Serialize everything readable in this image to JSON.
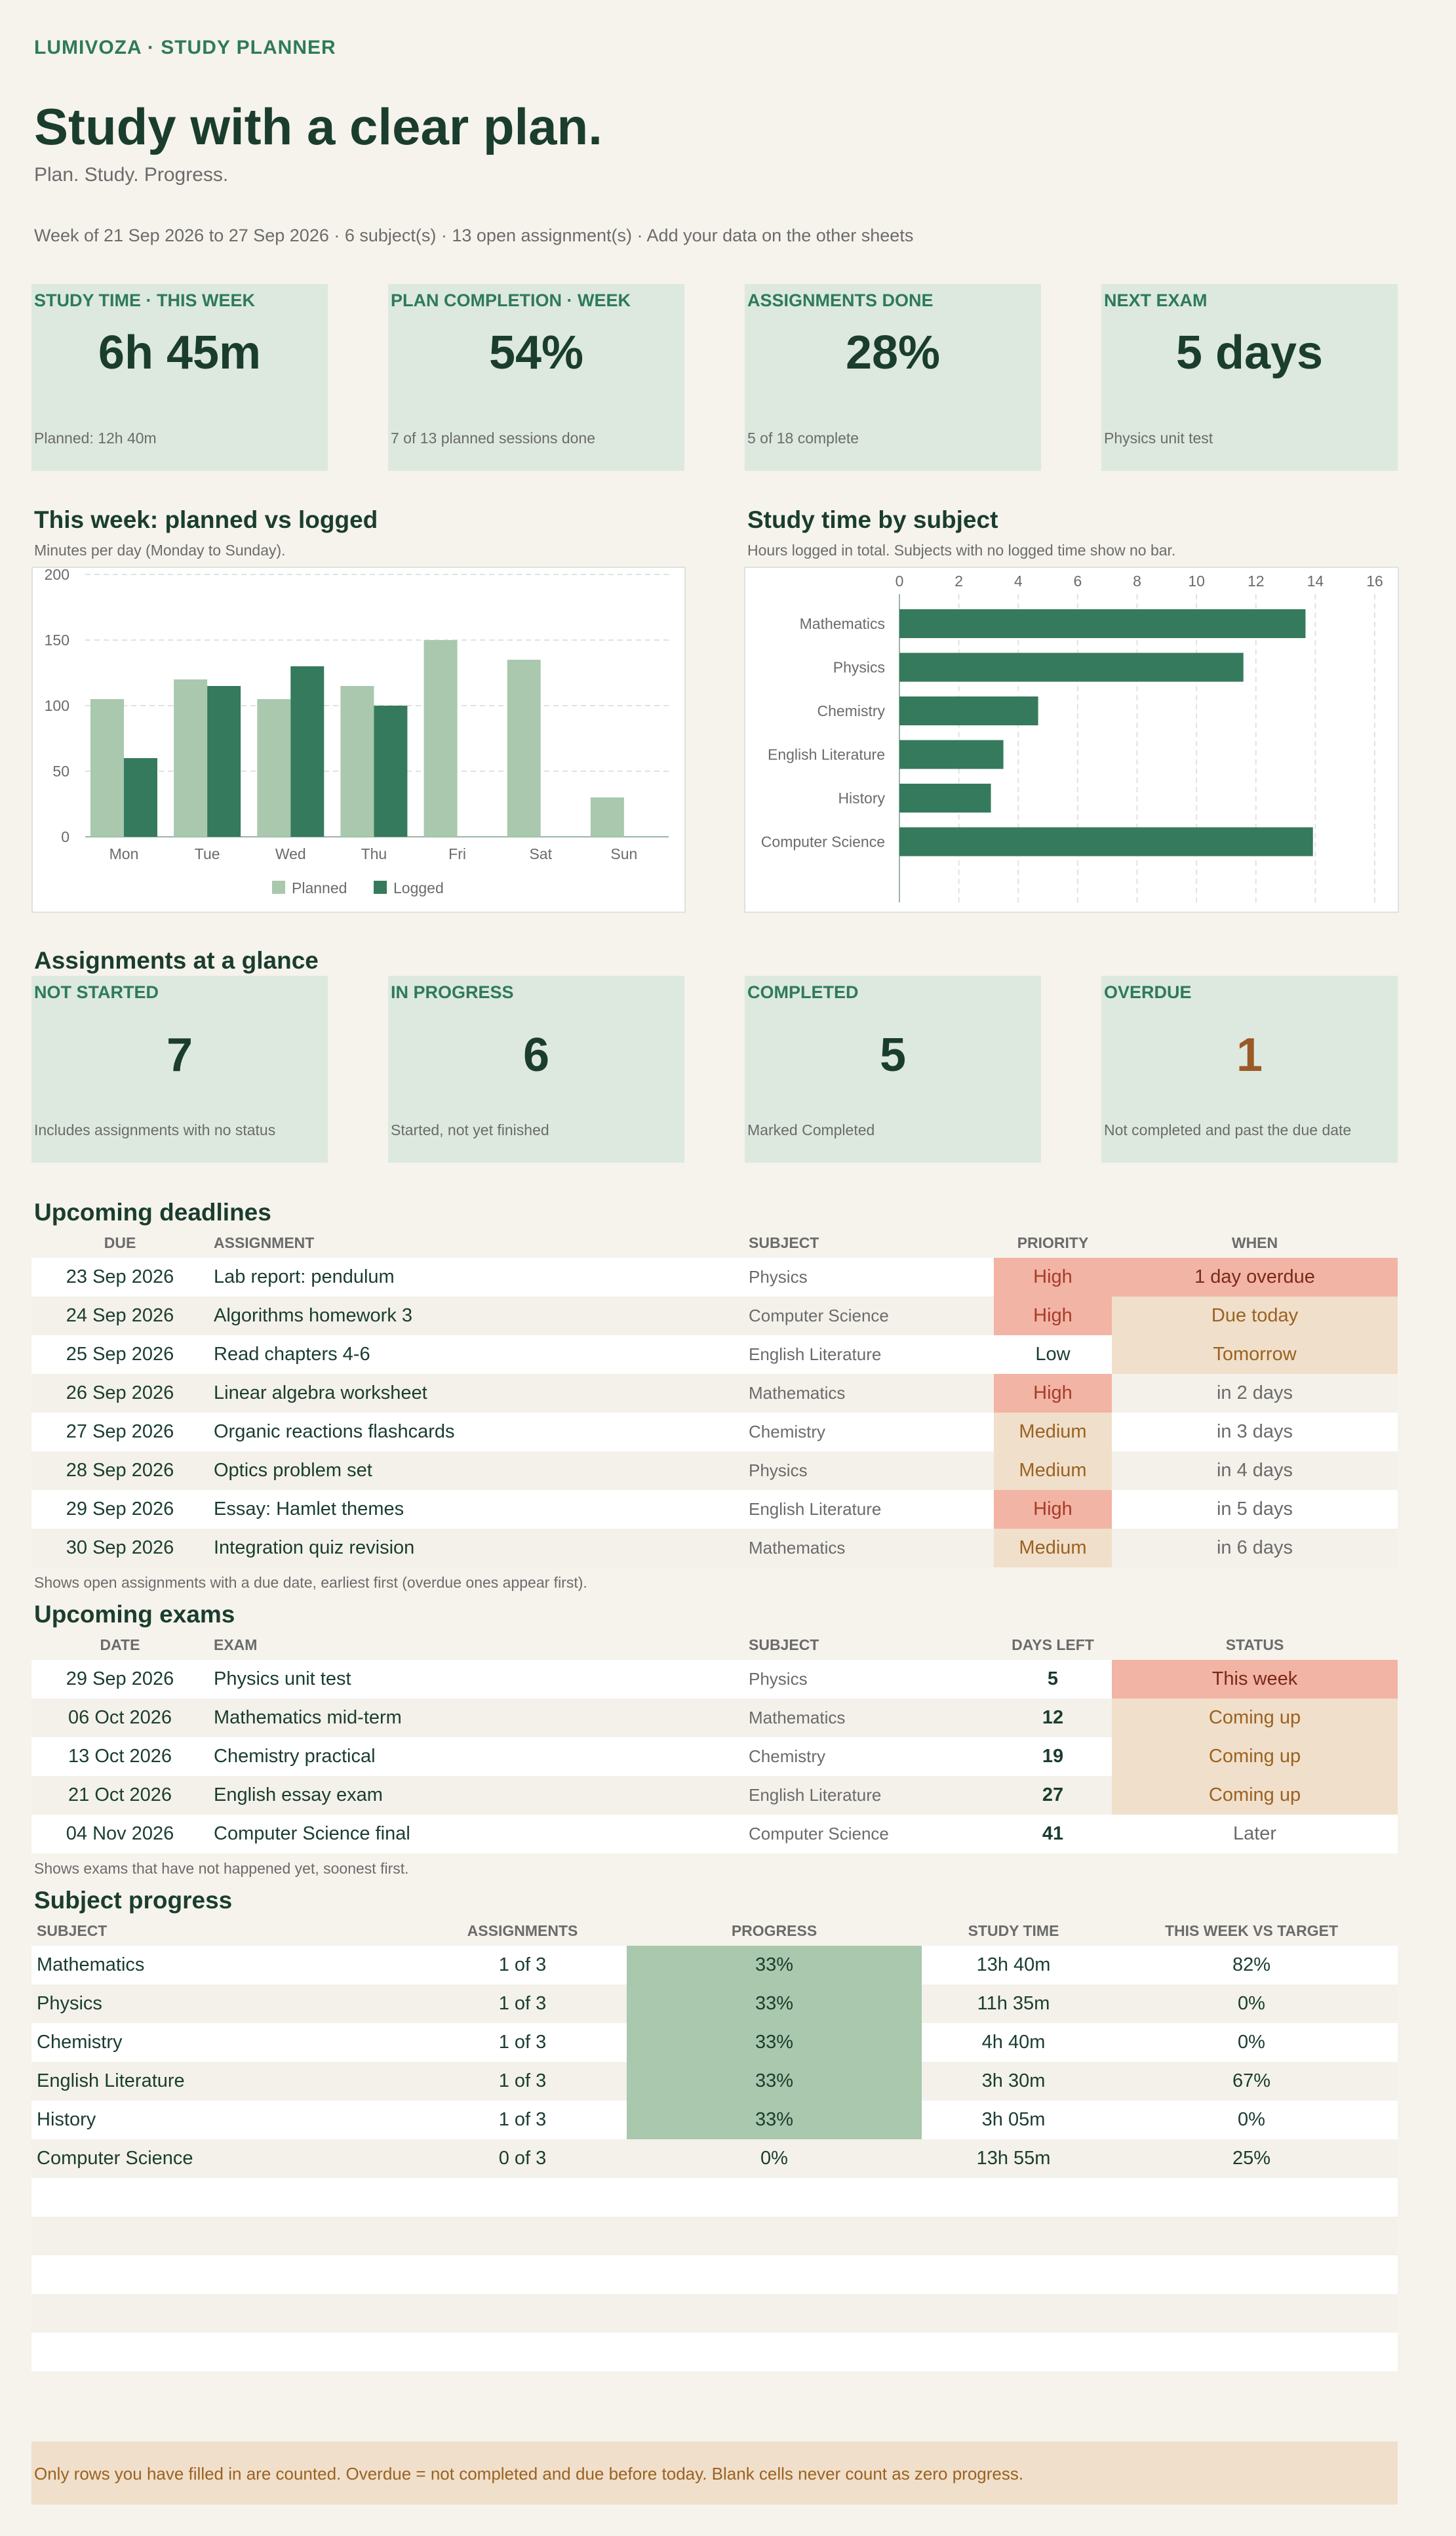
{
  "header": {
    "brand": "LUMIVOZA  ·  STUDY PLANNER",
    "title": "Study with a clear plan.",
    "tagline": "Plan. Study. Progress.",
    "meta": "Week of 21 Sep 2026 to 27 Sep 2026  ·  6 subject(s)  ·  13 open assignment(s)  ·  Add your data on the other sheets"
  },
  "kpis": [
    {
      "label": "STUDY TIME · THIS WEEK",
      "value": "6h 45m",
      "note": "Planned: 12h 40m"
    },
    {
      "label": "PLAN COMPLETION · WEEK",
      "value": "54%",
      "note": "7 of 13 planned sessions done"
    },
    {
      "label": "ASSIGNMENTS DONE",
      "value": "28%",
      "note": "5 of 18 complete"
    },
    {
      "label": "NEXT EXAM",
      "value": "5 days",
      "note": "Physics unit test"
    }
  ],
  "weekly": {
    "title": "This week: planned vs logged",
    "note": "Minutes per day (Monday to Sunday)."
  },
  "subject_time": {
    "title": "Study time by subject",
    "note": "Hours logged in total. Subjects with no logged time show no bar."
  },
  "chart_data": [
    {
      "type": "bar",
      "categories": [
        "Mon",
        "Tue",
        "Wed",
        "Thu",
        "Fri",
        "Sat",
        "Sun"
      ],
      "series": [
        {
          "name": "Planned",
          "values": [
            105,
            120,
            105,
            115,
            150,
            135,
            30
          ]
        },
        {
          "name": "Logged",
          "values": [
            60,
            115,
            130,
            100,
            0,
            0,
            0
          ]
        }
      ],
      "ylim": [
        0,
        200
      ],
      "yticks": [
        0,
        50,
        100,
        150,
        200
      ],
      "grid": true,
      "legend": "bottom",
      "colors": {
        "Planned": "#a9c8ad",
        "Logged": "#357a5c"
      }
    },
    {
      "type": "bar",
      "orientation": "horizontal",
      "categories": [
        "Mathematics",
        "Physics",
        "Chemistry",
        "English Literature",
        "History",
        "Computer Science"
      ],
      "values": [
        13.67,
        11.58,
        4.67,
        3.5,
        3.08,
        13.92
      ],
      "xlim": [
        0,
        16
      ],
      "xticks": [
        0,
        2,
        4,
        6,
        8,
        10,
        12,
        14,
        16
      ],
      "grid": true,
      "color": "#357a5c"
    }
  ],
  "status": {
    "title": "Assignments at a glance",
    "cards": [
      {
        "label": "NOT STARTED",
        "value": "7",
        "note": "Includes assignments with no status"
      },
      {
        "label": "IN PROGRESS",
        "value": "6",
        "note": "Started, not yet finished"
      },
      {
        "label": "COMPLETED",
        "value": "5",
        "note": "Marked Completed"
      },
      {
        "label": "OVERDUE",
        "value": "1",
        "note": "Not completed and past the due date"
      }
    ]
  },
  "deadlines": {
    "title": "Upcoming deadlines",
    "headers": [
      "DUE",
      "ASSIGNMENT",
      "SUBJECT",
      "PRIORITY",
      "WHEN"
    ],
    "rows": [
      {
        "due": "23 Sep 2026",
        "assignment": "Lab report: pendulum",
        "subject": "Physics",
        "priority": "High",
        "when": "1 day overdue",
        "pcls": "p-high",
        "wcls": "w-over"
      },
      {
        "due": "24 Sep 2026",
        "assignment": "Algorithms homework 3",
        "subject": "Computer Science",
        "priority": "High",
        "when": "Due today",
        "pcls": "p-high",
        "wcls": "w-soon"
      },
      {
        "due": "25 Sep 2026",
        "assignment": "Read chapters 4-6",
        "subject": "English Literature",
        "priority": "Low",
        "when": "Tomorrow",
        "pcls": "p-low",
        "wcls": "w-soon"
      },
      {
        "due": "26 Sep 2026",
        "assignment": "Linear algebra worksheet",
        "subject": "Mathematics",
        "priority": "High",
        "when": "in 2 days",
        "pcls": "p-high",
        "wcls": "w-plain"
      },
      {
        "due": "27 Sep 2026",
        "assignment": "Organic reactions flashcards",
        "subject": "Chemistry",
        "priority": "Medium",
        "when": "in 3 days",
        "pcls": "p-med",
        "wcls": "w-plain"
      },
      {
        "due": "28 Sep 2026",
        "assignment": "Optics problem set",
        "subject": "Physics",
        "priority": "Medium",
        "when": "in 4 days",
        "pcls": "p-med",
        "wcls": "w-plain"
      },
      {
        "due": "29 Sep 2026",
        "assignment": "Essay: Hamlet themes",
        "subject": "English Literature",
        "priority": "High",
        "when": "in 5 days",
        "pcls": "p-high",
        "wcls": "w-plain"
      },
      {
        "due": "30 Sep 2026",
        "assignment": "Integration quiz revision",
        "subject": "Mathematics",
        "priority": "Medium",
        "when": "in 6 days",
        "pcls": "p-med",
        "wcls": "w-plain"
      }
    ],
    "note": "Shows open assignments with a due date, earliest first (overdue ones appear first)."
  },
  "exams": {
    "title": "Upcoming exams",
    "headers": [
      "DATE",
      "EXAM",
      "SUBJECT",
      "DAYS LEFT",
      "STATUS"
    ],
    "rows": [
      {
        "date": "29 Sep 2026",
        "exam": "Physics unit test",
        "subject": "Physics",
        "days": "5",
        "status": "This week",
        "scls": "w-over"
      },
      {
        "date": "06 Oct 2026",
        "exam": "Mathematics mid-term",
        "subject": "Mathematics",
        "days": "12",
        "status": "Coming up",
        "scls": "w-soon"
      },
      {
        "date": "13 Oct 2026",
        "exam": "Chemistry practical",
        "subject": "Chemistry",
        "days": "19",
        "status": "Coming up",
        "scls": "w-soon"
      },
      {
        "date": "21 Oct 2026",
        "exam": "English essay exam",
        "subject": "English Literature",
        "days": "27",
        "status": "Coming up",
        "scls": "w-soon"
      },
      {
        "date": "04 Nov 2026",
        "exam": "Computer Science final",
        "subject": "Computer Science",
        "days": "41",
        "status": "Later",
        "scls": "w-plain"
      }
    ],
    "note": "Shows exams that have not happened yet, soonest first."
  },
  "progress": {
    "title": "Subject progress",
    "headers": [
      "SUBJECT",
      "ASSIGNMENTS",
      "PROGRESS",
      "STUDY TIME",
      "THIS WEEK VS TARGET"
    ],
    "rows": [
      {
        "subject": "Mathematics",
        "assignments": "1 of 3",
        "progress": "33%",
        "fill": 0.33,
        "time": "13h 40m",
        "target": "82%"
      },
      {
        "subject": "Physics",
        "assignments": "1 of 3",
        "progress": "33%",
        "fill": 0.33,
        "time": "11h 35m",
        "target": "0%"
      },
      {
        "subject": "Chemistry",
        "assignments": "1 of 3",
        "progress": "33%",
        "fill": 0.33,
        "time": "4h 40m",
        "target": "0%"
      },
      {
        "subject": "English Literature",
        "assignments": "1 of 3",
        "progress": "33%",
        "fill": 0.33,
        "time": "3h 30m",
        "target": "67%"
      },
      {
        "subject": "History",
        "assignments": "1 of 3",
        "progress": "33%",
        "fill": 0.33,
        "time": "3h 05m",
        "target": "0%"
      },
      {
        "subject": "Computer Science",
        "assignments": "0 of 3",
        "progress": "0%",
        "fill": 0,
        "time": "13h 55m",
        "target": "25%"
      }
    ]
  },
  "footer": "Only rows you have filled in are counted. Overdue = not completed and due before today. Blank cells never count as zero progress."
}
